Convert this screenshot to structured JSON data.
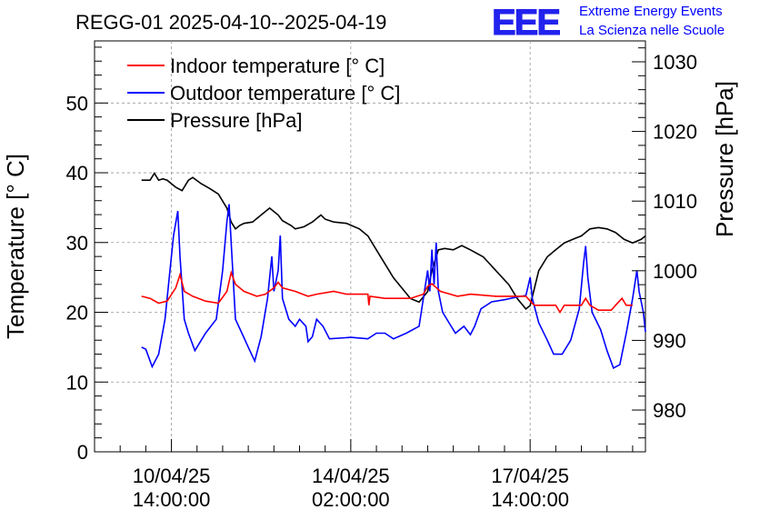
{
  "chart_data": {
    "type": "line",
    "title": "REGG-01 2025-04-10--2025-04-19",
    "ylabel": "Temperature [° C]",
    "y2label": "Pressure [hPa]",
    "ylim": [
      0,
      58.9
    ],
    "y2lim": [
      974,
      1033
    ],
    "xlim_hours": [
      -36,
      222
    ],
    "x_unit": "hours since 2025-04-10 14:00:00",
    "x_ticks": [
      {
        "x": 0,
        "date": "10/04/25",
        "time": "14:00:00"
      },
      {
        "x": 84,
        "date": "14/04/25",
        "time": "02:00:00"
      },
      {
        "x": 168,
        "date": "17/04/25",
        "time": "14:00:00"
      }
    ],
    "y_ticks": [
      "0",
      "10",
      "20",
      "30",
      "40",
      "50"
    ],
    "y2_ticks": [
      "980",
      "990",
      "1000",
      "1010",
      "1020",
      "1030"
    ],
    "grid": true,
    "legend": [
      "Indoor temperature [° C]",
      "Outdoor temperature [° C]",
      "Pressure [hPa]"
    ],
    "colors": {
      "indoor": "#ff0000",
      "outdoor": "#0000ff",
      "pressure": "#000000"
    },
    "series": [
      {
        "name": "Indoor temperature [° C]",
        "axis": "left",
        "color": "#ff0000",
        "points": [
          [
            -14,
            22.3
          ],
          [
            -10,
            22.0
          ],
          [
            -6,
            21.3
          ],
          [
            -2,
            21.6
          ],
          [
            2,
            23.5
          ],
          [
            4,
            25.4
          ],
          [
            6,
            23.0
          ],
          [
            10,
            22.3
          ],
          [
            16,
            21.6
          ],
          [
            22,
            21.3
          ],
          [
            26,
            23.0
          ],
          [
            28,
            25.7
          ],
          [
            30,
            24.0
          ],
          [
            34,
            23.0
          ],
          [
            40,
            22.3
          ],
          [
            44,
            22.6
          ],
          [
            48,
            23.5
          ],
          [
            50,
            24.3
          ],
          [
            52,
            23.5
          ],
          [
            58,
            23.0
          ],
          [
            64,
            22.3
          ],
          [
            68,
            22.6
          ],
          [
            76,
            23.0
          ],
          [
            82,
            22.6
          ],
          [
            92,
            22.6
          ],
          [
            92.5,
            21.0
          ],
          [
            93,
            22.3
          ],
          [
            100,
            22.0
          ],
          [
            112,
            22.0
          ],
          [
            118,
            22.6
          ],
          [
            120,
            23.7
          ],
          [
            122,
            24.1
          ],
          [
            126,
            23.0
          ],
          [
            134,
            22.3
          ],
          [
            140,
            22.6
          ],
          [
            152,
            22.3
          ],
          [
            166,
            22.3
          ],
          [
            168,
            21.6
          ],
          [
            170,
            21.0
          ],
          [
            180,
            21.0
          ],
          [
            182,
            20.0
          ],
          [
            184,
            21.0
          ],
          [
            192,
            21.0
          ],
          [
            194,
            22.0
          ],
          [
            196,
            21.0
          ],
          [
            200,
            20.3
          ],
          [
            206,
            20.3
          ],
          [
            208,
            21.0
          ],
          [
            211,
            22.0
          ],
          [
            213,
            21.0
          ],
          [
            216,
            21.0
          ]
        ]
      },
      {
        "name": "Outdoor temperature [° C]",
        "axis": "left",
        "color": "#0000ff",
        "points": [
          [
            -14,
            15.0
          ],
          [
            -12,
            14.7
          ],
          [
            -9,
            12.2
          ],
          [
            -6,
            14.0
          ],
          [
            -3,
            19.0
          ],
          [
            -1,
            25.0
          ],
          [
            1,
            31.0
          ],
          [
            3,
            34.5
          ],
          [
            4,
            28.0
          ],
          [
            6,
            19.0
          ],
          [
            8,
            17.0
          ],
          [
            11,
            14.5
          ],
          [
            16,
            17.0
          ],
          [
            21,
            19.0
          ],
          [
            24,
            26.0
          ],
          [
            26,
            33.0
          ],
          [
            27,
            35.5
          ],
          [
            28,
            30.0
          ],
          [
            30,
            19.0
          ],
          [
            33,
            17.0
          ],
          [
            36,
            15.0
          ],
          [
            39,
            13.0
          ],
          [
            42,
            16.5
          ],
          [
            45,
            22.0
          ],
          [
            47,
            28.0
          ],
          [
            48,
            23.0
          ],
          [
            50,
            26.0
          ],
          [
            51,
            31.0
          ],
          [
            52,
            22.0
          ],
          [
            55,
            19.0
          ],
          [
            58,
            18.0
          ],
          [
            60,
            19.0
          ],
          [
            63,
            18.0
          ],
          [
            64,
            15.8
          ],
          [
            66,
            16.5
          ],
          [
            68,
            19.0
          ],
          [
            71,
            18.0
          ],
          [
            74,
            16.2
          ],
          [
            84,
            16.4
          ],
          [
            92,
            16.2
          ],
          [
            96,
            17.0
          ],
          [
            100,
            17.0
          ],
          [
            104,
            16.2
          ],
          [
            110,
            17.0
          ],
          [
            116,
            18.0
          ],
          [
            118,
            22.0
          ],
          [
            120,
            26.0
          ],
          [
            121,
            23.0
          ],
          [
            122,
            29.0
          ],
          [
            123,
            24.0
          ],
          [
            124,
            30.0
          ],
          [
            125,
            23.0
          ],
          [
            127,
            20.0
          ],
          [
            130,
            18.5
          ],
          [
            133,
            17.0
          ],
          [
            137,
            18.0
          ],
          [
            140,
            16.8
          ],
          [
            142,
            18.0
          ],
          [
            145,
            20.5
          ],
          [
            150,
            21.5
          ],
          [
            156,
            21.8
          ],
          [
            162,
            22.2
          ],
          [
            166,
            22.4
          ],
          [
            168,
            25.0
          ],
          [
            169,
            22.0
          ],
          [
            172,
            18.5
          ],
          [
            176,
            16.0
          ],
          [
            179,
            14.0
          ],
          [
            183,
            14.0
          ],
          [
            187,
            16.0
          ],
          [
            191,
            20.5
          ],
          [
            193,
            27.0
          ],
          [
            194,
            29.5
          ],
          [
            195,
            25.0
          ],
          [
            197,
            20.0
          ],
          [
            201,
            17.5
          ],
          [
            204,
            14.5
          ],
          [
            207,
            12.0
          ],
          [
            210,
            12.5
          ],
          [
            213,
            17.0
          ],
          [
            216,
            22.0
          ],
          [
            218,
            26.0
          ],
          [
            219,
            23.0
          ],
          [
            221,
            20.0
          ],
          [
            222,
            17.2
          ]
        ]
      },
      {
        "name": "Pressure [hPa]",
        "axis": "right",
        "color": "#000000",
        "points": [
          [
            -14,
            1013.0
          ],
          [
            -10,
            1013.0
          ],
          [
            -8,
            1014.0
          ],
          [
            -6,
            1013.0
          ],
          [
            -4,
            1013.2
          ],
          [
            -2,
            1013.0
          ],
          [
            0,
            1012.5
          ],
          [
            2,
            1012.0
          ],
          [
            5,
            1011.5
          ],
          [
            8,
            1013.0
          ],
          [
            10,
            1013.4
          ],
          [
            14,
            1012.5
          ],
          [
            18,
            1011.8
          ],
          [
            22,
            1011.0
          ],
          [
            26,
            1009.0
          ],
          [
            28,
            1007.0
          ],
          [
            30,
            1006.0
          ],
          [
            32,
            1006.5
          ],
          [
            34,
            1006.8
          ],
          [
            38,
            1007.0
          ],
          [
            42,
            1008.0
          ],
          [
            46,
            1009.0
          ],
          [
            50,
            1008.0
          ],
          [
            52,
            1007.2
          ],
          [
            56,
            1006.5
          ],
          [
            58,
            1006.0
          ],
          [
            62,
            1006.3
          ],
          [
            66,
            1007.0
          ],
          [
            70,
            1008.0
          ],
          [
            72,
            1007.4
          ],
          [
            76,
            1007.0
          ],
          [
            82,
            1006.8
          ],
          [
            88,
            1006.0
          ],
          [
            92,
            1005.0
          ],
          [
            96,
            1003.0
          ],
          [
            100,
            1001.0
          ],
          [
            104,
            999.0
          ],
          [
            108,
            997.5
          ],
          [
            112,
            996.0
          ],
          [
            116,
            995.5
          ],
          [
            120,
            997.0
          ],
          [
            122,
            1000.0
          ],
          [
            125,
            1003.0
          ],
          [
            128,
            1003.2
          ],
          [
            132,
            1003.0
          ],
          [
            136,
            1003.6
          ],
          [
            140,
            1003.0
          ],
          [
            146,
            1002.0
          ],
          [
            152,
            1000.0
          ],
          [
            158,
            998.0
          ],
          [
            162,
            996.0
          ],
          [
            166,
            994.5
          ],
          [
            168,
            995.0
          ],
          [
            172,
            1000.0
          ],
          [
            176,
            1002.0
          ],
          [
            180,
            1003.0
          ],
          [
            184,
            1004.0
          ],
          [
            188,
            1004.5
          ],
          [
            192,
            1005.0
          ],
          [
            196,
            1006.0
          ],
          [
            200,
            1006.2
          ],
          [
            204,
            1006.0
          ],
          [
            208,
            1005.5
          ],
          [
            212,
            1004.5
          ],
          [
            216,
            1004.0
          ],
          [
            220,
            1004.5
          ],
          [
            222,
            1005.0
          ]
        ]
      }
    ]
  },
  "logo": {
    "mark": "EEE",
    "line1": "Extreme Energy Events",
    "line2": "La Scienza nelle Scuole"
  }
}
